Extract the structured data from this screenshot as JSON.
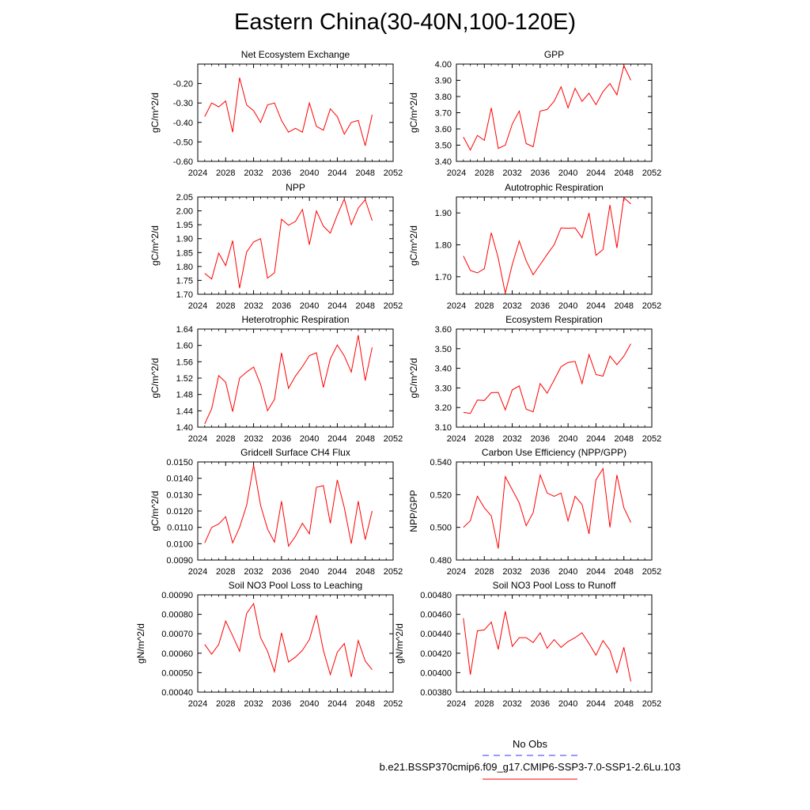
{
  "title": "Eastern China(30-40N,100-120E)",
  "legend": {
    "obs_label": "No Obs",
    "obs_color": "#3333ff",
    "run_label": "b.e21.BSSP370cmip6.f09_g17.CMIP6-SSP3-7.0-SSP1-2.6Lu.103",
    "run_color": "#ff0000"
  },
  "line_color": "#ff0000",
  "chart_data": [
    {
      "type": "line",
      "title": "Net Ecosystem Exchange",
      "ylabel": "gC/m^2/d",
      "xlim": [
        2024,
        2052
      ],
      "xticks": [
        "2024",
        "2028",
        "2032",
        "2036",
        "2040",
        "2044",
        "2048",
        "2052"
      ],
      "ylim": [
        -0.6,
        -0.1
      ],
      "yticks": [
        "-0.20",
        "-0.30",
        "-0.40",
        "-0.50",
        "-0.60"
      ],
      "ytick_values": [
        -0.2,
        -0.3,
        -0.4,
        -0.5,
        -0.6
      ],
      "x": [
        2025,
        2026,
        2027,
        2028,
        2029,
        2030,
        2031,
        2032,
        2033,
        2034,
        2035,
        2036,
        2037,
        2038,
        2039,
        2040,
        2041,
        2042,
        2043,
        2044,
        2045,
        2046,
        2047,
        2048,
        2049
      ],
      "values": [
        -0.37,
        -0.3,
        -0.32,
        -0.29,
        -0.45,
        -0.17,
        -0.31,
        -0.34,
        -0.4,
        -0.31,
        -0.3,
        -0.39,
        -0.45,
        -0.43,
        -0.45,
        -0.3,
        -0.42,
        -0.44,
        -0.33,
        -0.37,
        -0.46,
        -0.4,
        -0.39,
        -0.52,
        -0.36
      ]
    },
    {
      "type": "line",
      "title": "GPP",
      "ylabel": "gC/m^2/d",
      "xlim": [
        2024,
        2052
      ],
      "xticks": [
        "2024",
        "2028",
        "2032",
        "2036",
        "2040",
        "2044",
        "2048",
        "2052"
      ],
      "ylim": [
        3.4,
        4.0
      ],
      "yticks": [
        "4.00",
        "3.90",
        "3.80",
        "3.70",
        "3.60",
        "3.50",
        "3.40"
      ],
      "ytick_values": [
        4.0,
        3.9,
        3.8,
        3.7,
        3.6,
        3.5,
        3.4
      ],
      "x": [
        2025,
        2026,
        2027,
        2028,
        2029,
        2030,
        2031,
        2032,
        2033,
        2034,
        2035,
        2036,
        2037,
        2038,
        2039,
        2040,
        2041,
        2042,
        2043,
        2044,
        2045,
        2046,
        2047,
        2048,
        2049
      ],
      "values": [
        3.55,
        3.47,
        3.56,
        3.53,
        3.73,
        3.48,
        3.5,
        3.63,
        3.71,
        3.51,
        3.49,
        3.71,
        3.72,
        3.77,
        3.86,
        3.73,
        3.85,
        3.77,
        3.82,
        3.75,
        3.83,
        3.88,
        3.81,
        3.99,
        3.9
      ]
    },
    {
      "type": "line",
      "title": "NPP",
      "ylabel": "gC/m^2/d",
      "xlim": [
        2024,
        2052
      ],
      "xticks": [
        "2024",
        "2028",
        "2032",
        "2036",
        "2040",
        "2044",
        "2048",
        "2052"
      ],
      "ylim": [
        1.7,
        2.05
      ],
      "yticks": [
        "2.05",
        "2.00",
        "1.95",
        "1.90",
        "1.85",
        "1.80",
        "1.75",
        "1.70"
      ],
      "ytick_values": [
        2.05,
        2.0,
        1.95,
        1.9,
        1.85,
        1.8,
        1.75,
        1.7
      ],
      "x": [
        2025,
        2026,
        2027,
        2028,
        2029,
        2030,
        2031,
        2032,
        2033,
        2034,
        2035,
        2036,
        2037,
        2038,
        2039,
        2040,
        2041,
        2042,
        2043,
        2044,
        2045,
        2046,
        2047,
        2048,
        2049
      ],
      "values": [
        1.775,
        1.755,
        1.848,
        1.803,
        1.893,
        1.722,
        1.852,
        1.888,
        1.9,
        1.758,
        1.777,
        1.97,
        1.948,
        1.962,
        2.005,
        1.878,
        2.0,
        1.945,
        1.92,
        1.985,
        2.043,
        1.95,
        2.01,
        2.04,
        1.965
      ]
    },
    {
      "type": "line",
      "title": "Autotrophic Respiration",
      "ylabel": "gC/m^2/d",
      "xlim": [
        2024,
        2052
      ],
      "xticks": [
        "2024",
        "2028",
        "2032",
        "2036",
        "2040",
        "2044",
        "2048",
        "2052"
      ],
      "ylim": [
        1.645,
        1.95
      ],
      "yticks": [
        "1.90",
        "1.80",
        "1.70"
      ],
      "ytick_values": [
        1.9,
        1.8,
        1.7
      ],
      "x": [
        2025,
        2026,
        2027,
        2028,
        2029,
        2030,
        2031,
        2032,
        2033,
        2034,
        2035,
        2036,
        2037,
        2038,
        2039,
        2040,
        2041,
        2042,
        2043,
        2044,
        2045,
        2046,
        2047,
        2048,
        2049
      ],
      "values": [
        1.765,
        1.72,
        1.712,
        1.725,
        1.838,
        1.758,
        1.648,
        1.738,
        1.812,
        1.75,
        1.706,
        1.738,
        1.77,
        1.8,
        1.853,
        1.852,
        1.853,
        1.822,
        1.9,
        1.767,
        1.785,
        1.925,
        1.79,
        1.948,
        1.928
      ]
    },
    {
      "type": "line",
      "title": "Heterotrophic Respiration",
      "ylabel": "gC/m^2/d",
      "xlim": [
        2024,
        2052
      ],
      "xticks": [
        "2024",
        "2028",
        "2032",
        "2036",
        "2040",
        "2044",
        "2048",
        "2052"
      ],
      "ylim": [
        1.4,
        1.64
      ],
      "yticks": [
        "1.64",
        "1.60",
        "1.56",
        "1.52",
        "1.48",
        "1.44",
        "1.40"
      ],
      "ytick_values": [
        1.64,
        1.6,
        1.56,
        1.52,
        1.48,
        1.44,
        1.4
      ],
      "x": [
        2025,
        2026,
        2027,
        2028,
        2029,
        2030,
        2031,
        2032,
        2033,
        2034,
        2035,
        2036,
        2037,
        2038,
        2039,
        2040,
        2041,
        2042,
        2043,
        2044,
        2045,
        2046,
        2047,
        2048,
        2049
      ],
      "values": [
        1.408,
        1.445,
        1.526,
        1.51,
        1.438,
        1.52,
        1.535,
        1.547,
        1.505,
        1.44,
        1.468,
        1.582,
        1.495,
        1.525,
        1.548,
        1.575,
        1.582,
        1.497,
        1.567,
        1.601,
        1.574,
        1.535,
        1.625,
        1.514,
        1.595
      ]
    },
    {
      "type": "line",
      "title": "Ecosystem Respiration",
      "ylabel": "gC/m^2/d",
      "xlim": [
        2024,
        2052
      ],
      "xticks": [
        "2024",
        "2028",
        "2032",
        "2036",
        "2040",
        "2044",
        "2048",
        "2052"
      ],
      "ylim": [
        3.1,
        3.6
      ],
      "yticks": [
        "3.60",
        "3.50",
        "3.40",
        "3.30",
        "3.20",
        "3.10"
      ],
      "ytick_values": [
        3.6,
        3.5,
        3.4,
        3.3,
        3.2,
        3.1
      ],
      "x": [
        2025,
        2026,
        2027,
        2028,
        2029,
        2030,
        2031,
        2032,
        2033,
        2034,
        2035,
        2036,
        2037,
        2038,
        2039,
        2040,
        2041,
        2042,
        2043,
        2044,
        2045,
        2046,
        2047,
        2048,
        2049
      ],
      "values": [
        3.175,
        3.17,
        3.238,
        3.236,
        3.276,
        3.277,
        3.188,
        3.29,
        3.31,
        3.192,
        3.178,
        3.322,
        3.273,
        3.34,
        3.408,
        3.43,
        3.435,
        3.322,
        3.47,
        3.368,
        3.36,
        3.462,
        3.418,
        3.462,
        3.525
      ]
    },
    {
      "type": "line",
      "title": "Gridcell Surface CH4 Flux",
      "ylabel": "gC/m^2/d",
      "xlim": [
        2024,
        2052
      ],
      "xticks": [
        "2024",
        "2028",
        "2032",
        "2036",
        "2040",
        "2044",
        "2048",
        "2052"
      ],
      "ylim": [
        0.009,
        0.015
      ],
      "yticks": [
        "0.0150",
        "0.0140",
        "0.0130",
        "0.0120",
        "0.0110",
        "0.0100",
        "0.0090"
      ],
      "ytick_values": [
        0.015,
        0.014,
        0.013,
        0.012,
        0.011,
        0.01,
        0.009
      ],
      "x": [
        2025,
        2026,
        2027,
        2028,
        2029,
        2030,
        2031,
        2032,
        2033,
        2034,
        2035,
        2036,
        2037,
        2038,
        2039,
        2040,
        2041,
        2042,
        2043,
        2044,
        2045,
        2046,
        2047,
        2048,
        2049
      ],
      "values": [
        0.01005,
        0.011,
        0.0112,
        0.01165,
        0.01005,
        0.011,
        0.01235,
        0.0148,
        0.01235,
        0.0109,
        0.0101,
        0.0126,
        0.00985,
        0.01045,
        0.01125,
        0.0106,
        0.01345,
        0.01355,
        0.01125,
        0.0139,
        0.0122,
        0.01,
        0.0126,
        0.01025,
        0.012
      ]
    },
    {
      "type": "line",
      "title": "Carbon Use Efficiency (NPP/GPP)",
      "ylabel": "NPP/GPP",
      "xlim": [
        2024,
        2052
      ],
      "xticks": [
        "2024",
        "2028",
        "2032",
        "2036",
        "2040",
        "2044",
        "2048",
        "2052"
      ],
      "ylim": [
        0.48,
        0.54
      ],
      "yticks": [
        "0.540",
        "0.520",
        "0.500",
        "0.480"
      ],
      "ytick_values": [
        0.54,
        0.52,
        0.5,
        0.48
      ],
      "x": [
        2025,
        2026,
        2027,
        2028,
        2029,
        2030,
        2031,
        2032,
        2033,
        2034,
        2035,
        2036,
        2037,
        2038,
        2039,
        2040,
        2041,
        2042,
        2043,
        2044,
        2045,
        2046,
        2047,
        2048,
        2049
      ],
      "values": [
        0.5,
        0.504,
        0.519,
        0.512,
        0.507,
        0.487,
        0.531,
        0.523,
        0.515,
        0.501,
        0.509,
        0.532,
        0.521,
        0.519,
        0.521,
        0.504,
        0.519,
        0.514,
        0.496,
        0.529,
        0.536,
        0.5,
        0.532,
        0.512,
        0.503
      ]
    },
    {
      "type": "line",
      "title": "Soil NO3 Pool Loss to Leaching",
      "ylabel": "gN/m^2/d",
      "xlim": [
        2024,
        2052
      ],
      "xticks": [
        "2024",
        "2028",
        "2032",
        "2036",
        "2040",
        "2044",
        "2048",
        "2052"
      ],
      "ylim": [
        0.0004,
        0.0009
      ],
      "yticks": [
        "0.00090",
        "0.00080",
        "0.00070",
        "0.00060",
        "0.00050",
        "0.00040"
      ],
      "ytick_values": [
        0.0009,
        0.0008,
        0.0007,
        0.0006,
        0.0005,
        0.0004
      ],
      "x": [
        2025,
        2026,
        2027,
        2028,
        2029,
        2030,
        2031,
        2032,
        2033,
        2034,
        2035,
        2036,
        2037,
        2038,
        2039,
        2040,
        2041,
        2042,
        2043,
        2044,
        2045,
        2046,
        2047,
        2048,
        2049
      ],
      "values": [
        0.000645,
        0.000595,
        0.000645,
        0.000765,
        0.00069,
        0.00061,
        0.000805,
        0.000855,
        0.00068,
        0.00061,
        0.000505,
        0.000705,
        0.000555,
        0.00058,
        0.000615,
        0.00067,
        0.000795,
        0.000615,
        0.00049,
        0.000605,
        0.00065,
        0.000478,
        0.000665,
        0.00056,
        0.000515
      ]
    },
    {
      "type": "line",
      "title": "Soil NO3 Pool Loss to Runoff",
      "ylabel": "gN/m^2/d",
      "xlim": [
        2024,
        2052
      ],
      "xticks": [
        "2024",
        "2028",
        "2032",
        "2036",
        "2040",
        "2044",
        "2048",
        "2052"
      ],
      "ylim": [
        0.0038,
        0.0048
      ],
      "yticks": [
        "0.00480",
        "0.00460",
        "0.00440",
        "0.00420",
        "0.00400",
        "0.00380"
      ],
      "ytick_values": [
        0.0048,
        0.0046,
        0.0044,
        0.0042,
        0.004,
        0.0038
      ],
      "x": [
        2025,
        2026,
        2027,
        2028,
        2029,
        2030,
        2031,
        2032,
        2033,
        2034,
        2035,
        2036,
        2037,
        2038,
        2039,
        2040,
        2041,
        2042,
        2043,
        2044,
        2045,
        2046,
        2047,
        2048,
        2049
      ],
      "values": [
        0.00456,
        0.00398,
        0.00443,
        0.00444,
        0.00452,
        0.00424,
        0.00463,
        0.00427,
        0.00436,
        0.00436,
        0.00431,
        0.00441,
        0.00425,
        0.00434,
        0.00426,
        0.00432,
        0.00436,
        0.00441,
        0.0043,
        0.00418,
        0.00433,
        0.00423,
        0.004,
        0.00426,
        0.00391
      ]
    }
  ]
}
